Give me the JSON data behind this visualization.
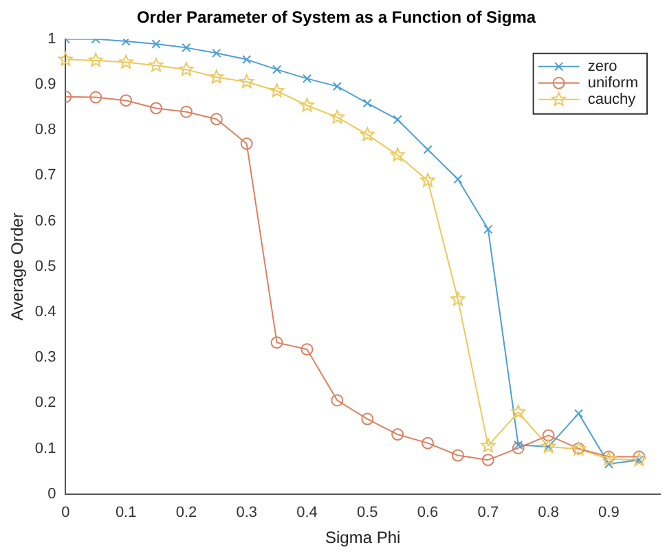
{
  "chart_data": {
    "type": "line",
    "title": "Order Parameter of System as a Function of Sigma",
    "xlabel": "Sigma Phi",
    "ylabel": "Average Order",
    "x": [
      0,
      0.05,
      0.1,
      0.15,
      0.2,
      0.25,
      0.3,
      0.35,
      0.4,
      0.45,
      0.5,
      0.55,
      0.6,
      0.65,
      0.7,
      0.75,
      0.8,
      0.85,
      0.9,
      0.95
    ],
    "series": [
      {
        "name": "zero",
        "color": "#4d9fd4",
        "marker": "cross",
        "values": [
          1.0,
          1.0,
          0.995,
          0.989,
          0.981,
          0.969,
          0.955,
          0.933,
          0.913,
          0.896,
          0.859,
          0.823,
          0.757,
          0.692,
          0.582,
          0.108,
          0.104,
          0.177,
          0.066,
          0.075
        ]
      },
      {
        "name": "uniform",
        "color": "#dd8060",
        "marker": "circle",
        "values": [
          0.873,
          0.872,
          0.865,
          0.848,
          0.84,
          0.824,
          0.77,
          0.333,
          0.318,
          0.206,
          0.165,
          0.131,
          0.112,
          0.085,
          0.075,
          0.101,
          0.129,
          0.1,
          0.082,
          0.082
        ]
      },
      {
        "name": "cauchy",
        "color": "#eec85a",
        "marker": "star",
        "values": [
          0.955,
          0.953,
          0.949,
          0.942,
          0.933,
          0.916,
          0.906,
          0.886,
          0.854,
          0.828,
          0.79,
          0.745,
          0.689,
          0.428,
          0.106,
          0.18,
          0.104,
          0.099,
          0.077,
          0.075
        ]
      }
    ],
    "xlim": [
      0,
      0.985
    ],
    "xticks": [
      0,
      0.1,
      0.2,
      0.3,
      0.4,
      0.5,
      0.6,
      0.7,
      0.8,
      0.9
    ],
    "ylim": [
      0,
      1
    ],
    "yticks": [
      0,
      0.1,
      0.2,
      0.3,
      0.4,
      0.5,
      0.6,
      0.7,
      0.8,
      0.9,
      1
    ],
    "grid": false,
    "legend": "top right",
    "line_style": "solid"
  }
}
